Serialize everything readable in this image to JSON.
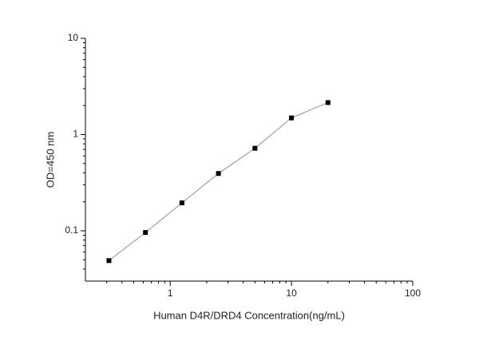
{
  "chart_data": {
    "type": "line",
    "x_label": "Human D4R/DRD4 Concentration(ng/mL)",
    "y_label": "OD=450 nm",
    "x": [
      0.3125,
      0.625,
      1.25,
      2.5,
      5,
      10,
      20
    ],
    "series": [
      {
        "color": "#000000",
        "values": [
          0.049,
          0.096,
          0.195,
          0.394,
          0.72,
          1.49,
          2.15
        ]
      }
    ],
    "xlim": [
      0.2,
      100
    ],
    "ylim": [
      0.03,
      10
    ],
    "xticks": [
      1,
      10,
      100
    ],
    "yticks": [
      0.1,
      1,
      10
    ],
    "xscale": "log",
    "yscale": "log",
    "grid": false
  }
}
